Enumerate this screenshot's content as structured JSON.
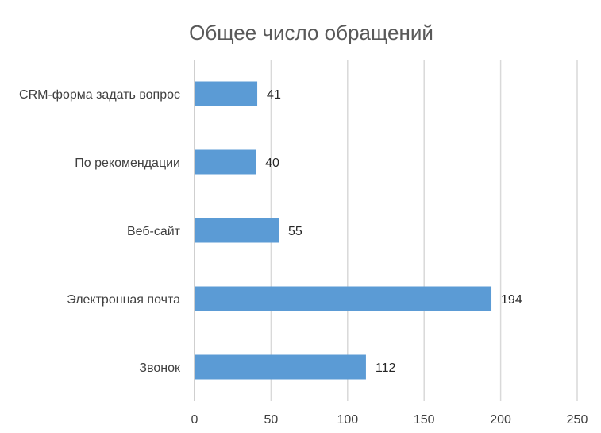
{
  "chart_data": {
    "type": "bar",
    "orientation": "horizontal",
    "title": "Общее число обращений",
    "categories": [
      "CRM-форма задать вопрос",
      "По рекомендации",
      "Веб-сайт",
      "Электронная почта",
      "Звонок"
    ],
    "values": [
      41,
      40,
      55,
      194,
      112
    ],
    "xlim": [
      0,
      250
    ],
    "x_ticks": [
      0,
      50,
      100,
      150,
      200,
      250
    ],
    "grid": true,
    "legend": "none",
    "data_labels": true,
    "bar_color": "#5b9bd5"
  }
}
